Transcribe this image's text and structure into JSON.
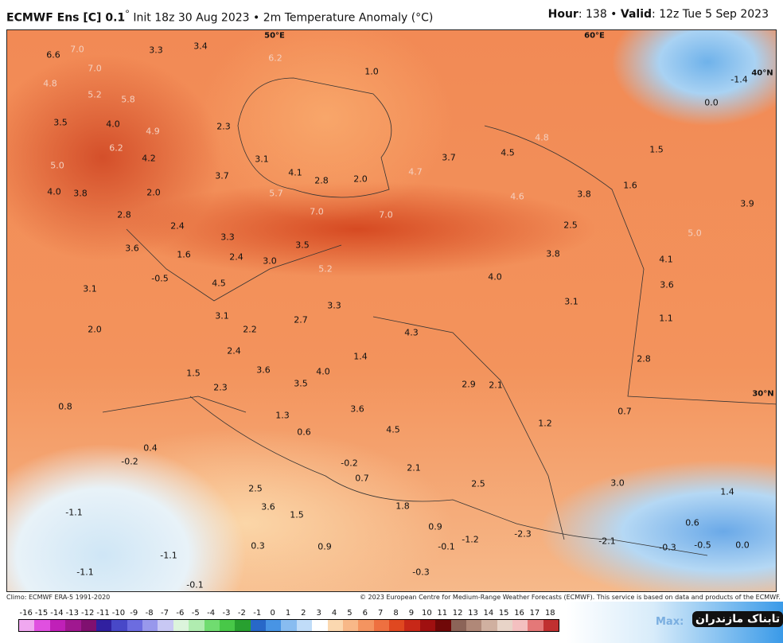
{
  "header": {
    "model": "ECMWF Ens [C] 0.1",
    "deg": "°",
    "init": " Init 18z 30 Aug 2023 • 2m Temperature Anomaly (°C)",
    "hour_label": "Hour",
    "hour": ": 138 • ",
    "valid_label": "Valid",
    "valid": ": 12z Tue 5 Sep 2023"
  },
  "coords": [
    "50°E",
    "60°E",
    "40°N",
    "30°N"
  ],
  "values": [
    "6.6",
    "7.0",
    "7.0",
    "3.3",
    "3.4",
    "6.2",
    "1.0",
    "-1.4",
    "0.0",
    "4.8",
    "5.2",
    "5.8",
    "3.5",
    "4.0",
    "4.9",
    "2.3",
    "6.2",
    "4.2",
    "3.1",
    "4.1",
    "2.8",
    "2.0",
    "4.7",
    "3.7",
    "4.5",
    "4.8",
    "1.5",
    "5.0",
    "4.0",
    "3.8",
    "2.0",
    "3.7",
    "5.7",
    "7.0",
    "7.0",
    "4.6",
    "3.8",
    "1.6",
    "3.9",
    "2.8",
    "2.4",
    "3.3",
    "2.5",
    "5.0",
    "3.6",
    "1.6",
    "2.4",
    "3.0",
    "3.5",
    "5.2",
    "3.8",
    "4.1",
    "-0.5",
    "4.5",
    "4.0",
    "3.6",
    "3.1",
    "3.3",
    "3.1",
    "3.1",
    "2.2",
    "2.7",
    "4.3",
    "1.1",
    "2.0",
    "2.4",
    "1.4",
    "2.8",
    "1.5",
    "3.6",
    "4.0",
    "2.9",
    "2.1",
    "2.3",
    "3.5",
    "0.8",
    "1.3",
    "3.6",
    "1.2",
    "0.7",
    "0.6",
    "4.5",
    "0.4",
    "-0.2",
    "-0.2",
    "2.1",
    "0.7",
    "2.5",
    "3.0",
    "1.4",
    "2.5",
    "1.8",
    "3.6",
    "1.5",
    "-1.1",
    "0.9",
    "0.6",
    "0.3",
    "0.9",
    "-0.1",
    "-2.3",
    "-2.1",
    "-0.3",
    "-0.5",
    "0.0",
    "-1.2",
    "-1.1",
    "-1.1",
    "-0.3",
    "-0.1"
  ],
  "footer": {
    "climo": "Climo: ECMWF ERA-5 1991-2020",
    "copyright": "© 2023 European Centre for Medium-Range Weather Forecasts (ECMWF). This service is based on data and products of the ECMWF."
  },
  "colorbar": {
    "ticks": [
      "-16",
      "-15",
      "-14",
      "-13",
      "-12",
      "-11",
      "-10",
      "-9",
      "-8",
      "-7",
      "-6",
      "-5",
      "-4",
      "-3",
      "-2",
      "-1",
      "0",
      "1",
      "2",
      "3",
      "4",
      "5",
      "6",
      "7",
      "8",
      "9",
      "10",
      "11",
      "12",
      "13",
      "14",
      "15",
      "16",
      "17",
      "18"
    ],
    "colors": [
      "#f0a8f0",
      "#e050e0",
      "#c020b8",
      "#a01890",
      "#801070",
      "#3020a0",
      "#4848c8",
      "#6c6ce0",
      "#9898ec",
      "#c8c8f4",
      "#dcf4dc",
      "#b0ecb0",
      "#70dc70",
      "#48c848",
      "#28a030",
      "#2868c8",
      "#4894e4",
      "#88bcf0",
      "#c0dcf8",
      "#ffffff",
      "#fbd8b0",
      "#f8b888",
      "#f49460",
      "#ee7040",
      "#e04820",
      "#c82818",
      "#a01010",
      "#700808",
      "#8c6458",
      "#b08878",
      "#d0b0a0",
      "#e8d4c8",
      "#f4c0c0",
      "#e47878",
      "#c03030"
    ]
  },
  "logo": {
    "max": "Max:",
    "brand": "تابناک مازندران"
  }
}
